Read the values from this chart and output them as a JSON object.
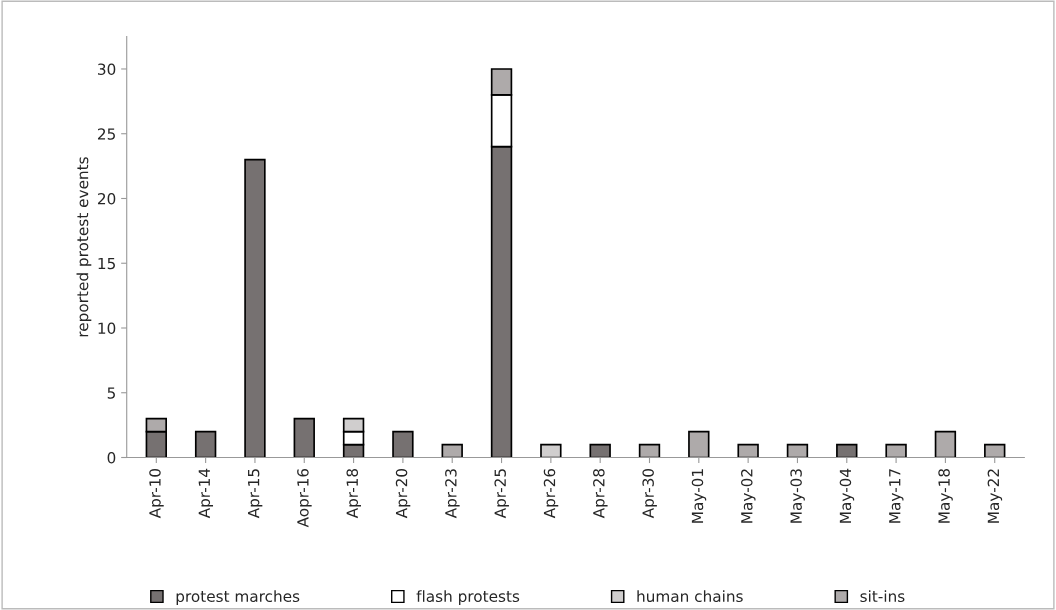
{
  "chart_data": {
    "type": "bar",
    "stacked": true,
    "ylabel": "reported protest events",
    "categories": [
      "Apr-10",
      "Apr-14",
      "Apr-15",
      "Aopr-16",
      "Apr-18",
      "Apr-20",
      "Apr-23",
      "Apr-25",
      "Apr-26",
      "Apr-28",
      "Apr-30",
      "May-01",
      "May-02",
      "May-03",
      "May-04",
      "May-17",
      "May-18",
      "May-22"
    ],
    "series": [
      {
        "name": "protest marches",
        "color": "#767171",
        "values": [
          2,
          2,
          23,
          3,
          1,
          2,
          0,
          24,
          0,
          1,
          0,
          0,
          0,
          0,
          1,
          0,
          0,
          0
        ]
      },
      {
        "name": "flash protests",
        "color": "#ffffff",
        "values": [
          0,
          0,
          0,
          0,
          1,
          0,
          0,
          4,
          0,
          0,
          0,
          0,
          0,
          0,
          0,
          0,
          0,
          0
        ]
      },
      {
        "name": "human chains",
        "color": "#d0cece",
        "values": [
          0,
          0,
          0,
          0,
          1,
          0,
          0,
          0,
          1,
          0,
          0,
          0,
          0,
          0,
          0,
          0,
          0,
          0
        ]
      },
      {
        "name": "sit-ins",
        "color": "#aeaaaa",
        "values": [
          1,
          0,
          0,
          0,
          0,
          0,
          1,
          2,
          0,
          0,
          1,
          2,
          1,
          1,
          0,
          1,
          2,
          1
        ]
      }
    ],
    "ylim": [
      0,
      32.5
    ],
    "yticks": [
      0,
      5,
      10,
      15,
      20,
      25,
      30
    ],
    "grid": false,
    "legend": "bottom"
  }
}
